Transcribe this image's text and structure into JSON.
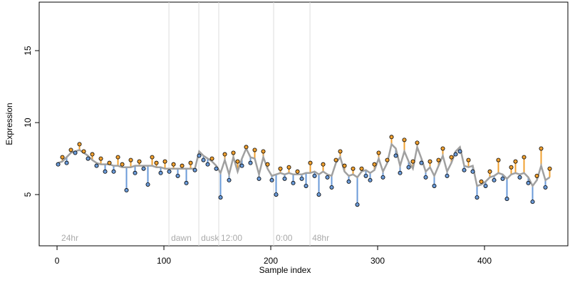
{
  "chart_data": {
    "type": "scatter",
    "xlabel": "Sample index",
    "ylabel": "Expression",
    "xlim": [
      -16.7,
      478
    ],
    "ylim": [
      1.44,
      18.37
    ],
    "xticks": [
      0,
      100,
      200,
      300,
      400
    ],
    "yticks": [
      5,
      10,
      15
    ],
    "fit_color": "#a0a0a0",
    "above_color": "#f0a030",
    "below_color": "#6a9ad8",
    "guide_color": "#dddddd",
    "annotations": [
      {
        "label": "24hr",
        "x": 2,
        "line": false
      },
      {
        "label": "dawn",
        "x": 104.7,
        "line": true
      },
      {
        "label": "dusk",
        "x": 132.7,
        "line": true
      },
      {
        "label": "12:00",
        "x": 151.3,
        "line": true
      },
      {
        "label": "0:00",
        "x": 202.7,
        "line": true
      },
      {
        "label": "48hr",
        "x": 236.7,
        "line": true
      }
    ],
    "x": [
      1,
      5,
      9,
      13,
      17,
      21,
      25,
      29,
      33,
      37,
      41,
      45,
      49,
      53,
      57,
      61,
      65,
      69,
      73,
      77,
      81,
      85,
      89,
      93,
      97,
      101,
      105,
      109,
      113,
      117,
      121,
      125,
      129,
      133,
      137,
      141,
      145,
      149,
      153,
      157,
      161,
      165,
      169,
      173,
      177,
      181,
      185,
      189,
      193,
      197,
      201,
      205,
      209,
      213,
      217,
      221,
      225,
      229,
      233,
      237,
      241,
      245,
      249,
      253,
      257,
      261,
      265,
      269,
      273,
      277,
      281,
      285,
      289,
      293,
      297,
      301,
      305,
      309,
      313,
      317,
      321,
      325,
      329,
      333,
      337,
      341,
      345,
      349,
      353,
      357,
      361,
      365,
      369,
      373,
      377,
      381,
      385,
      389,
      393,
      397,
      401,
      405,
      409,
      413,
      417,
      421,
      425,
      429,
      433,
      437,
      441,
      445,
      449,
      453,
      457,
      461
    ],
    "fitted_values": [
      7.2,
      7.3,
      7.6,
      7.9,
      8.0,
      8.1,
      7.9,
      7.7,
      7.4,
      7.2,
      7.1,
      7.1,
      7.1,
      7.0,
      7.0,
      6.9,
      6.9,
      6.9,
      7.0,
      7.0,
      7.0,
      7.0,
      7.0,
      6.9,
      6.9,
      6.8,
      6.8,
      6.8,
      6.8,
      6.8,
      6.8,
      6.8,
      6.8,
      8.0,
      7.7,
      7.5,
      7.3,
      7.0,
      6.5,
      7.4,
      6.4,
      7.6,
      6.6,
      7.5,
      8.2,
      7.6,
      7.5,
      6.4,
      7.6,
      6.8,
      6.3,
      6.4,
      6.5,
      6.4,
      6.5,
      6.4,
      6.4,
      6.4,
      6.5,
      6.5,
      6.6,
      6.4,
      6.6,
      6.4,
      6.3,
      7.2,
      7.6,
      6.6,
      6.3,
      6.4,
      6.2,
      6.6,
      6.7,
      6.5,
      6.7,
      7.5,
      6.6,
      7.2,
      8.5,
      8.2,
      7.0,
      8.0,
      7.3,
      6.8,
      8.3,
      7.5,
      6.6,
      6.9,
      6.3,
      7.0,
      7.7,
      6.6,
      7.2,
      8.0,
      8.3,
      7.0,
      6.9,
      7.0,
      5.6,
      5.7,
      5.9,
      6.2,
      6.3,
      6.5,
      6.4,
      6.1,
      6.4,
      6.5,
      6.4,
      6.5,
      6.2,
      5.6,
      6.0,
      7.0,
      6.0,
      6.2
    ],
    "values": [
      7.1,
      7.6,
      7.2,
      8.1,
      7.9,
      8.5,
      8.0,
      7.5,
      7.8,
      7.0,
      7.5,
      6.6,
      7.2,
      6.6,
      7.6,
      7.1,
      5.3,
      7.4,
      6.5,
      7.3,
      6.8,
      5.7,
      7.6,
      7.2,
      6.5,
      7.3,
      6.6,
      7.1,
      6.3,
      7.0,
      5.8,
      7.2,
      6.7,
      7.7,
      7.4,
      7.1,
      7.5,
      6.8,
      4.8,
      7.8,
      6.0,
      7.9,
      7.3,
      7.0,
      8.3,
      7.2,
      8.1,
      6.1,
      8.0,
      7.1,
      6.0,
      5.0,
      6.8,
      6.1,
      6.9,
      5.8,
      6.6,
      6.1,
      5.6,
      7.2,
      6.3,
      5.0,
      7.1,
      6.2,
      5.5,
      7.4,
      8.0,
      7.0,
      5.9,
      6.8,
      4.3,
      6.8,
      6.3,
      6.0,
      7.1,
      7.9,
      6.2,
      7.4,
      9.0,
      7.7,
      6.5,
      8.8,
      6.9,
      7.3,
      8.6,
      7.2,
      6.2,
      7.3,
      5.6,
      7.4,
      8.2,
      6.3,
      7.6,
      7.8,
      8.0,
      6.7,
      7.4,
      6.6,
      4.8,
      5.9,
      5.6,
      6.6,
      6.0,
      7.4,
      6.1,
      4.7,
      6.9,
      7.3,
      6.2,
      7.6,
      5.8,
      4.5,
      6.3,
      8.2,
      5.5,
      6.8
    ]
  }
}
